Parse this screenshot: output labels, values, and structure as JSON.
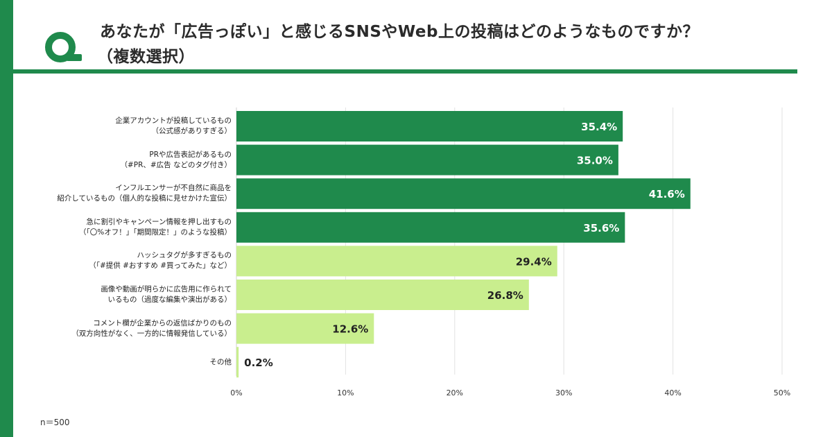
{
  "header": {
    "title_line1": "あなたが「広告っぽい」と感じるSNSやWeb上の投稿はどのようなものですか？",
    "title_line2": "（複数選択）"
  },
  "colors": {
    "dark_green": "#1f8a4c",
    "light_green": "#c9ee8e",
    "grid": "#e2e2e2"
  },
  "chart_data": {
    "type": "bar",
    "orientation": "horizontal",
    "title": "あなたが「広告っぽい」と感じるSNSやWeb上の投稿はどのようなものですか？（複数選択）",
    "unit": "%",
    "xlim": [
      0,
      50
    ],
    "xticks": [
      "0%",
      "10%",
      "20%",
      "30%",
      "40%",
      "50%"
    ],
    "grid": true,
    "categories": [
      [
        "企業アカウントが投稿しているもの",
        "（公式感がありすぎる）"
      ],
      [
        "PRや広告表記があるもの",
        "（#PR、#広告 などのタグ付き）"
      ],
      [
        "インフルエンサーが不自然に商品を",
        "紹介しているもの（個人的な投稿に見せかけた宣伝）"
      ],
      [
        "急に割引やキャンペーン情報を押し出すもの",
        "（「〇%オフ！」「期間限定！」のような投稿）"
      ],
      [
        "ハッシュタグが多すぎるもの",
        "（「#提供 #おすすめ #買ってみた」など）"
      ],
      [
        "画像や動画が明らかに広告用に作られて",
        "いるもの（過度な編集や演出がある）"
      ],
      [
        "コメント欄が企業からの返信ばかりのもの",
        "（双方向性がなく、一方的に情報発信している）"
      ],
      [
        "その他"
      ]
    ],
    "values": [
      35.4,
      35.0,
      41.6,
      35.6,
      29.4,
      26.8,
      12.6,
      0.2
    ],
    "value_labels": [
      "35.4%",
      "35.0%",
      "41.6%",
      "35.6%",
      "29.4%",
      "26.8%",
      "12.6%",
      "0.2%"
    ],
    "highlight_top": 4
  },
  "footer": {
    "sample_size": "n＝500"
  }
}
